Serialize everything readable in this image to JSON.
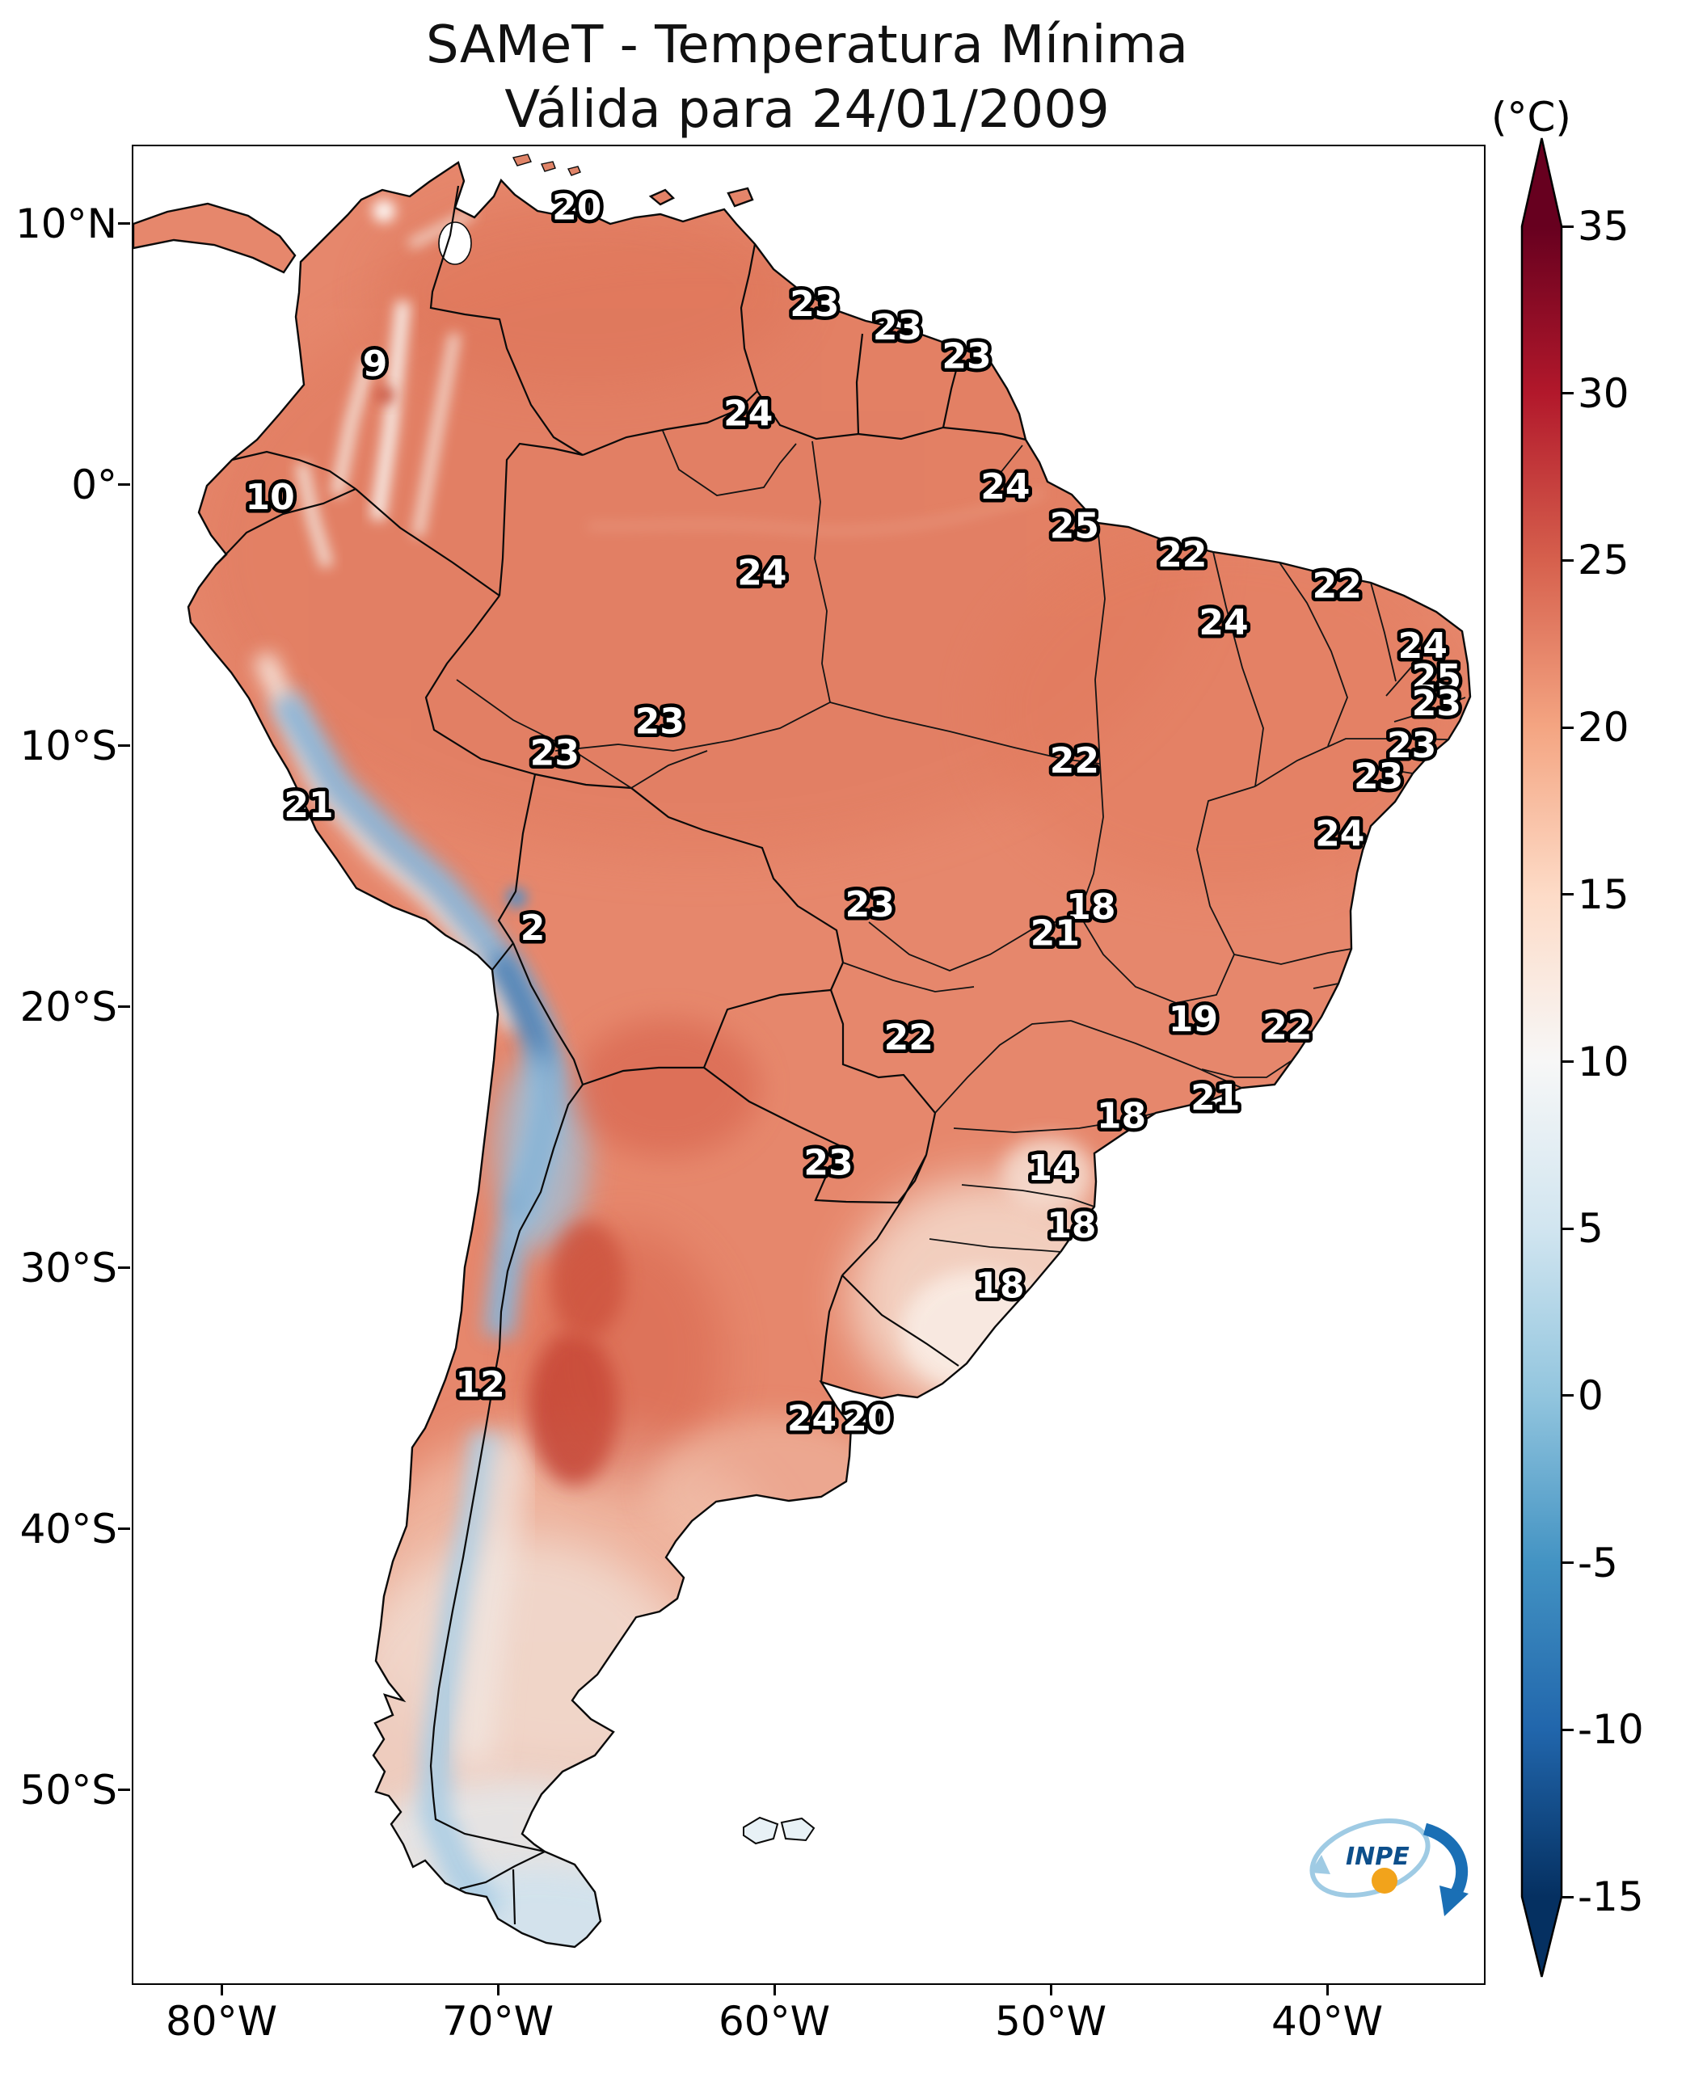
{
  "title": {
    "line1": "SAMeT - Temperatura Mínima",
    "line2": "Válida para 24/01/2009"
  },
  "colorbar": {
    "unit_label": "(°C)",
    "min": -15,
    "max": 35,
    "extend": "both",
    "ticks": [
      35,
      30,
      25,
      20,
      15,
      10,
      5,
      0,
      -5,
      -10,
      -15
    ],
    "stops": [
      {
        "value": -15,
        "color": "#053061"
      },
      {
        "value": -10,
        "color": "#2166ac"
      },
      {
        "value": -5,
        "color": "#4393c3"
      },
      {
        "value": 0,
        "color": "#92c5de"
      },
      {
        "value": 5,
        "color": "#d1e5f0"
      },
      {
        "value": 10,
        "color": "#f7f7f7"
      },
      {
        "value": 15,
        "color": "#fddbc7"
      },
      {
        "value": 20,
        "color": "#f4a582"
      },
      {
        "value": 25,
        "color": "#d6604d"
      },
      {
        "value": 30,
        "color": "#b2182b"
      },
      {
        "value": 35,
        "color": "#67001f"
      }
    ]
  },
  "axes": {
    "lat_ticks": [
      {
        "label": "10°N",
        "lat": 10
      },
      {
        "label": "0°",
        "lat": 0
      },
      {
        "label": "10°S",
        "lat": -10
      },
      {
        "label": "20°S",
        "lat": -20
      },
      {
        "label": "30°S",
        "lat": -30
      },
      {
        "label": "40°S",
        "lat": -40
      },
      {
        "label": "50°S",
        "lat": -50
      }
    ],
    "lon_ticks": [
      {
        "label": "80°W",
        "lon": -80
      },
      {
        "label": "70°W",
        "lon": -70
      },
      {
        "label": "60°W",
        "lon": -60
      },
      {
        "label": "50°W",
        "lon": -50
      },
      {
        "label": "40°W",
        "lon": -40
      }
    ]
  },
  "logo": {
    "text": "INPE"
  },
  "chart_data": {
    "type": "heatmap",
    "title": "SAMeT - Temperatura Mínima",
    "subtitle": "Válida para 24/01/2009",
    "unit": "°C",
    "region": "South America",
    "colormap": "RdBu_r",
    "value_range": [
      -15,
      35
    ],
    "legend_position": "right",
    "station_values": [
      {
        "value": 20,
        "lon": -67.2,
        "lat": 10.7
      },
      {
        "value": 23,
        "lon": -58.6,
        "lat": 7.0
      },
      {
        "value": 23,
        "lon": -55.6,
        "lat": 6.1
      },
      {
        "value": 23,
        "lon": -53.1,
        "lat": 5.0
      },
      {
        "value": 9,
        "lon": -74.5,
        "lat": 4.7
      },
      {
        "value": 24,
        "lon": -61.0,
        "lat": 2.8
      },
      {
        "value": 10,
        "lon": -78.3,
        "lat": -0.4
      },
      {
        "value": 24,
        "lon": -51.7,
        "lat": 0.0
      },
      {
        "value": 25,
        "lon": -49.2,
        "lat": -1.5
      },
      {
        "value": 22,
        "lon": -45.3,
        "lat": -2.6
      },
      {
        "value": 24,
        "lon": -60.5,
        "lat": -3.3
      },
      {
        "value": 22,
        "lon": -39.7,
        "lat": -3.8
      },
      {
        "value": 24,
        "lon": -43.8,
        "lat": -5.2
      },
      {
        "value": 24,
        "lon": -36.6,
        "lat": -6.1
      },
      {
        "value": 25,
        "lon": -36.1,
        "lat": -7.3
      },
      {
        "value": 23,
        "lon": -36.1,
        "lat": -8.3
      },
      {
        "value": 23,
        "lon": -64.2,
        "lat": -9.0
      },
      {
        "value": 23,
        "lon": -68.0,
        "lat": -10.2
      },
      {
        "value": 23,
        "lon": -37.0,
        "lat": -9.9
      },
      {
        "value": 22,
        "lon": -49.2,
        "lat": -10.5
      },
      {
        "value": 23,
        "lon": -38.2,
        "lat": -11.1
      },
      {
        "value": 21,
        "lon": -76.9,
        "lat": -12.2
      },
      {
        "value": 24,
        "lon": -39.6,
        "lat": -13.3
      },
      {
        "value": 2,
        "lon": -68.8,
        "lat": -16.9
      },
      {
        "value": 23,
        "lon": -56.6,
        "lat": -16.0
      },
      {
        "value": 18,
        "lon": -48.6,
        "lat": -16.1
      },
      {
        "value": 21,
        "lon": -49.9,
        "lat": -17.1
      },
      {
        "value": 22,
        "lon": -55.2,
        "lat": -21.1
      },
      {
        "value": 19,
        "lon": -44.9,
        "lat": -20.4
      },
      {
        "value": 22,
        "lon": -41.5,
        "lat": -20.7
      },
      {
        "value": 18,
        "lon": -47.5,
        "lat": -24.1
      },
      {
        "value": 21,
        "lon": -44.1,
        "lat": -23.4
      },
      {
        "value": 23,
        "lon": -58.1,
        "lat": -25.9
      },
      {
        "value": 14,
        "lon": -50.0,
        "lat": -26.1
      },
      {
        "value": 18,
        "lon": -49.3,
        "lat": -28.3
      },
      {
        "value": 18,
        "lon": -51.9,
        "lat": -30.6
      },
      {
        "value": 12,
        "lon": -70.7,
        "lat": -34.4
      },
      {
        "value": 24,
        "lon": -58.7,
        "lat": -35.7
      },
      {
        "value": 20,
        "lon": -56.7,
        "lat": -35.7
      }
    ]
  }
}
